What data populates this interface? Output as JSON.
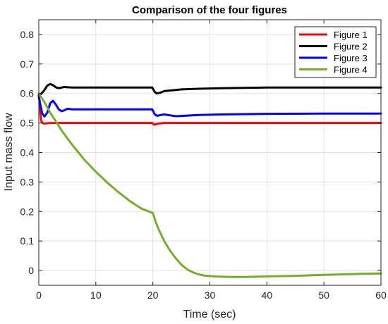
{
  "chart_data": {
    "type": "line",
    "title": "Comparison of the four figures",
    "xlabel": "Time (sec)",
    "ylabel": "Input mass flow",
    "xlim": [
      0,
      60
    ],
    "ylim": [
      -0.05,
      0.85
    ],
    "xticks": [
      0,
      10,
      20,
      30,
      40,
      50,
      60
    ],
    "yticks": [
      0,
      0.1,
      0.2,
      0.3,
      0.4,
      0.5,
      0.6,
      0.7,
      0.8
    ],
    "xtick_labels": [
      "0",
      "10",
      "20",
      "30",
      "40",
      "50",
      "60"
    ],
    "ytick_labels": [
      "0",
      "0.1",
      "0.2",
      "0.3",
      "0.4",
      "0.5",
      "0.6",
      "0.7",
      "0.8"
    ],
    "grid": true,
    "legend_position": "top-right",
    "series": [
      {
        "name": "Figure 1",
        "color": "#ff0000",
        "x": [
          0,
          0.2,
          0.4,
          0.6,
          1,
          2,
          5,
          10,
          15,
          19.9,
          20.2,
          20.6,
          21,
          22,
          25,
          30,
          40,
          50,
          60
        ],
        "y": [
          0.6,
          0.55,
          0.51,
          0.5,
          0.498,
          0.5,
          0.5,
          0.5,
          0.5,
          0.5,
          0.494,
          0.496,
          0.498,
          0.5,
          0.5,
          0.5,
          0.5,
          0.5,
          0.5
        ]
      },
      {
        "name": "Figure 2",
        "color": "#000000",
        "x": [
          0,
          0.5,
          1,
          1.5,
          2,
          2.5,
          3,
          3.5,
          4,
          4.5,
          5,
          6,
          8,
          10,
          15,
          19.9,
          20.3,
          20.7,
          21.2,
          22,
          23,
          24,
          25,
          28,
          32,
          40,
          50,
          60
        ],
        "y": [
          0.595,
          0.6,
          0.612,
          0.627,
          0.632,
          0.628,
          0.621,
          0.618,
          0.62,
          0.622,
          0.621,
          0.62,
          0.62,
          0.62,
          0.62,
          0.62,
          0.606,
          0.6,
          0.602,
          0.608,
          0.61,
          0.612,
          0.614,
          0.616,
          0.618,
          0.62,
          0.62,
          0.62
        ]
      },
      {
        "name": "Figure 3",
        "color": "#0000ff",
        "x": [
          0,
          0.3,
          0.6,
          1,
          1.5,
          2,
          2.5,
          3,
          3.5,
          4,
          4.5,
          5,
          6,
          7,
          8,
          10,
          15,
          19.9,
          20.3,
          20.8,
          21.3,
          22,
          23,
          24,
          25,
          28,
          32,
          40,
          50,
          60
        ],
        "y": [
          0.59,
          0.56,
          0.532,
          0.522,
          0.535,
          0.567,
          0.575,
          0.562,
          0.546,
          0.54,
          0.543,
          0.548,
          0.546,
          0.546,
          0.546,
          0.546,
          0.546,
          0.546,
          0.53,
          0.524,
          0.527,
          0.529,
          0.526,
          0.523,
          0.524,
          0.527,
          0.529,
          0.531,
          0.532,
          0.532
        ]
      },
      {
        "name": "Figure 4",
        "color": "#77ac30",
        "x": [
          0,
          1,
          2,
          3,
          4,
          5,
          6,
          8,
          10,
          12,
          14,
          16,
          18,
          20,
          20.5,
          21,
          22,
          23,
          24,
          25,
          26,
          27,
          28,
          29,
          30,
          32,
          34,
          36,
          38,
          40,
          45,
          50,
          55,
          60
        ],
        "y": [
          0.6,
          0.57,
          0.535,
          0.505,
          0.475,
          0.448,
          0.423,
          0.375,
          0.335,
          0.298,
          0.265,
          0.235,
          0.21,
          0.195,
          0.165,
          0.14,
          0.1,
          0.068,
          0.042,
          0.02,
          0.004,
          -0.006,
          -0.013,
          -0.017,
          -0.019,
          -0.021,
          -0.022,
          -0.022,
          -0.021,
          -0.02,
          -0.018,
          -0.015,
          -0.012,
          -0.01
        ]
      }
    ]
  }
}
